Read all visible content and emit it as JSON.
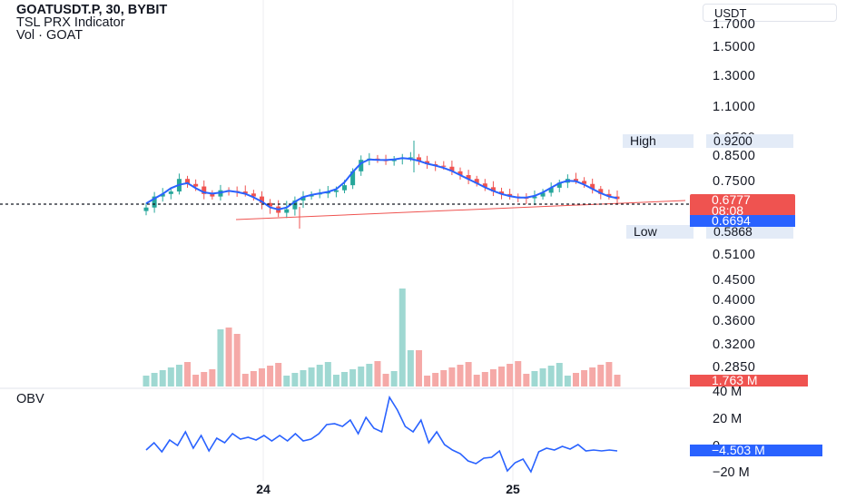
{
  "header": {
    "symbol_line": "GOATUSDT.P, 30, BYBIT",
    "indicator_line": "TSL PRX Indicator",
    "volume_line": "Vol · GOAT"
  },
  "price_axis": {
    "unit_label": "USDT",
    "ticks": [
      "1.7000",
      "1.5000",
      "1.3000",
      "1.1000",
      "0.9500",
      "0.8500",
      "0.7500",
      "0.5100",
      "0.4500",
      "0.4000",
      "0.3600",
      "0.3200",
      "0.2850"
    ]
  },
  "markers": {
    "high_label": "High",
    "high_value": "0.9200",
    "low_label": "Low",
    "low_value": "0.5868",
    "last_price": "0.6777",
    "countdown": "08:08",
    "tsl_value": "0.6694",
    "volume_value": "1.763 M",
    "obv_value": "−4.503 M"
  },
  "obv_pane": {
    "title": "OBV",
    "ticks": [
      "40 M",
      "20 M",
      "0",
      "−20 M"
    ]
  },
  "time_axis": {
    "labels": [
      "24",
      "25"
    ]
  },
  "colors": {
    "up": "#26a69a",
    "down": "#ef5350",
    "tsl": "#2962ff",
    "obv": "#2962ff",
    "trend": "#ef5350"
  },
  "chart_data": {
    "type": "line",
    "series": [
      {
        "values": [
          0.655,
          0.69,
          0.7,
          0.71,
          0.76,
          0.74,
          0.73,
          0.7,
          0.69,
          0.715,
          0.712,
          0.71,
          0.702,
          0.69,
          0.668,
          0.658,
          0.64,
          0.65,
          0.675,
          0.69,
          0.698,
          0.702,
          0.708,
          0.715,
          0.735,
          0.79,
          0.835,
          0.84,
          0.835,
          0.83,
          0.838,
          0.842,
          0.845,
          0.83,
          0.818,
          0.812,
          0.808,
          0.79,
          0.775,
          0.76,
          0.742,
          0.727,
          0.71,
          0.7,
          0.69,
          0.685,
          0.683,
          0.69,
          0.705,
          0.725,
          0.745,
          0.76,
          0.752,
          0.74,
          0.72,
          0.7,
          0.69,
          0.68
        ]
      }
    ]
  }
}
